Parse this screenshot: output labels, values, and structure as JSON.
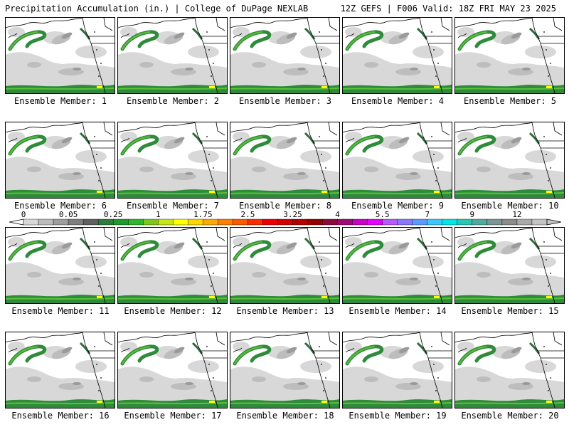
{
  "header": {
    "left": "Precipitation Accumulation (in.) | College of DuPage NEXLAB",
    "right": "12Z GEFS | F006 Valid: 18Z FRI MAY 23 2025"
  },
  "members": [
    {
      "label": "Ensemble Member: 1"
    },
    {
      "label": "Ensemble Member: 2"
    },
    {
      "label": "Ensemble Member: 3"
    },
    {
      "label": "Ensemble Member: 4"
    },
    {
      "label": "Ensemble Member: 5"
    },
    {
      "label": "Ensemble Member: 6"
    },
    {
      "label": "Ensemble Member: 7"
    },
    {
      "label": "Ensemble Member: 8"
    },
    {
      "label": "Ensemble Member: 9"
    },
    {
      "label": "Ensemble Member: 10"
    },
    {
      "label": "Ensemble Member: 11"
    },
    {
      "label": "Ensemble Member: 12"
    },
    {
      "label": "Ensemble Member: 13"
    },
    {
      "label": "Ensemble Member: 14"
    },
    {
      "label": "Ensemble Member: 15"
    },
    {
      "label": "Ensemble Member: 16"
    },
    {
      "label": "Ensemble Member: 17"
    },
    {
      "label": "Ensemble Member: 18"
    },
    {
      "label": "Ensemble Member: 19"
    },
    {
      "label": "Ensemble Member: 20"
    }
  ],
  "legend": {
    "tick_labels": [
      "0",
      "0.05",
      "0.25",
      "1",
      "1.75",
      "2.5",
      "3.25",
      "4",
      "5.5",
      "7",
      "9",
      "12"
    ],
    "tick_positions": [
      0,
      3,
      6,
      9,
      12,
      15,
      18,
      21,
      24,
      27,
      30,
      33
    ],
    "colors": [
      "#d8d8d8",
      "#bcbcbc",
      "#9e9e9e",
      "#7f7f7f",
      "#606060",
      "#2f7d3c",
      "#1f9a30",
      "#2eb82e",
      "#7dc81e",
      "#c8e614",
      "#ffff00",
      "#ffd700",
      "#ffaa00",
      "#ff8000",
      "#ff5a00",
      "#ff2a00",
      "#ee0000",
      "#d20000",
      "#b40000",
      "#960000",
      "#8c0a3c",
      "#a00a78",
      "#c800c8",
      "#e600ff",
      "#b45aff",
      "#8c78ff",
      "#5a9bff",
      "#3cc8ff",
      "#00e6e6",
      "#28c8b4",
      "#50aaa0",
      "#7a9696",
      "#8c8c8c",
      "#aaaaaa",
      "#c4c4c4"
    ]
  }
}
